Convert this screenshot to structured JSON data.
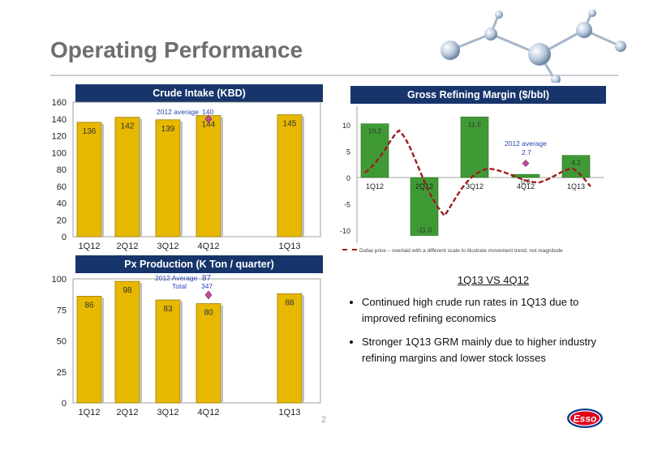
{
  "page": {
    "title": "Operating Performance",
    "page_number": "2"
  },
  "crude_intake": {
    "header": "Crude Intake (KBD)",
    "average_label": "2012  average",
    "average_value": "140",
    "average": 140,
    "y_ticks": [
      "0",
      "20",
      "40",
      "60",
      "80",
      "100",
      "120",
      "140",
      "160"
    ],
    "categories": [
      "1Q12",
      "2Q12",
      "3Q12",
      "4Q12",
      "1Q13"
    ],
    "values": [
      136,
      142,
      139,
      144,
      145
    ],
    "value_labels": [
      "136",
      "142",
      "139",
      "144",
      "145"
    ]
  },
  "px_production": {
    "header": "Px Production (K Ton / quarter)",
    "average_label": "2012 Average",
    "average_value": "87",
    "total_label": "Total",
    "total_value": "347",
    "average": 87,
    "y_ticks": [
      "0",
      "25",
      "50",
      "75",
      "100"
    ],
    "categories": [
      "1Q12",
      "2Q12",
      "3Q12",
      "4Q12",
      "1Q13"
    ],
    "values": [
      86,
      98,
      83,
      80,
      88
    ],
    "value_labels": [
      "86",
      "98",
      "83",
      "80",
      "88"
    ]
  },
  "grm": {
    "header": "Gross Refining Margin ($/bbl)",
    "average_label": "2012  average",
    "average_value": "2.7",
    "average": 2.7,
    "y_ticks": [
      "10",
      "5",
      "0",
      "-5",
      "-10"
    ],
    "categories": [
      "1Q12",
      "2Q12",
      "3Q12",
      "4Q12",
      "1Q13"
    ],
    "values": [
      10.2,
      -11.0,
      11.5,
      0.6,
      4.2
    ],
    "value_labels": [
      "10.2",
      "-11.0",
      "11.5",
      "0.6",
      "4.2"
    ],
    "footnote": "Dubai price – overlaid with a different scale to illustrate movement trend, not magnitude"
  },
  "commentary": {
    "heading": "1Q13 VS 4Q12",
    "bullets": [
      "Continued high crude run rates in 1Q13 due to improved refining economics",
      "Stronger 1Q13 GRM mainly due to higher industry refining margins and lower stock losses"
    ]
  },
  "logo": {
    "text": "Esso"
  },
  "chart_data": [
    {
      "type": "bar",
      "title": "Crude Intake (KBD)",
      "categories": [
        "1Q12",
        "2Q12",
        "3Q12",
        "4Q12",
        "1Q13"
      ],
      "values": [
        136,
        142,
        139,
        144,
        145
      ],
      "ylim": [
        0,
        160
      ],
      "annotations": [
        "2012  average 140"
      ]
    },
    {
      "type": "bar",
      "title": "Px Production (K Ton / quarter)",
      "categories": [
        "1Q12",
        "2Q12",
        "3Q12",
        "4Q12",
        "1Q13"
      ],
      "values": [
        86,
        98,
        83,
        80,
        88
      ],
      "ylim": [
        0,
        100
      ],
      "annotations": [
        "2012 Average 87",
        "Total 347"
      ]
    },
    {
      "type": "bar",
      "title": "Gross Refining Margin ($/bbl)",
      "categories": [
        "1Q12",
        "2Q12",
        "3Q12",
        "4Q12",
        "1Q13"
      ],
      "values": [
        10.2,
        -11.0,
        11.5,
        0.6,
        4.2
      ],
      "ylim": [
        -12,
        12
      ],
      "annotations": [
        "2012  average 2.7"
      ]
    }
  ],
  "colors": {
    "header_bg": "#17356b",
    "gold_bar": "#e6b800",
    "green_bar": "#3f9a35",
    "marker": "#c04a9a",
    "dubai_line": "#9b1e1e",
    "title_gray": "#6d6e71",
    "esso_red": "#e2001a",
    "esso_blue": "#0b3a8c"
  }
}
